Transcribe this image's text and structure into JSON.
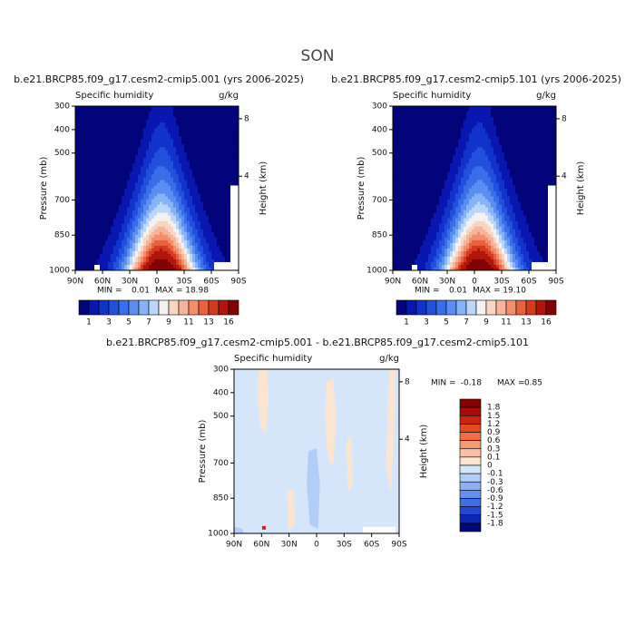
{
  "title": "SON",
  "panels": [
    {
      "title": "b.e21.BRCP85.f09_g17.cesm2-cmip5.001 (yrs 2006-2025)",
      "variable": "Specific humidity",
      "units": "g/kg",
      "ylabel": "Pressure (mb)",
      "y2label": "Height (km)",
      "xlim": [
        90,
        -90
      ],
      "xticks": [
        {
          "value": 90,
          "label": "90N"
        },
        {
          "value": 60,
          "label": "60N"
        },
        {
          "value": 30,
          "label": "30N"
        },
        0,
        {
          "value": -30,
          "label": "30S"
        },
        {
          "value": -60,
          "label": "60S"
        },
        {
          "value": -90,
          "label": "90S"
        }
      ],
      "ylim": [
        300,
        1000
      ],
      "yticks": [
        300,
        400,
        500,
        700,
        850,
        1000
      ],
      "y2ticks": [
        8,
        4
      ],
      "min_label": "MIN =",
      "min": "0.01",
      "max_label": "MAX =",
      "max": "18.98",
      "colorbar": {
        "orientation": "horizontal",
        "labels": [
          1,
          3,
          5,
          7,
          9,
          11,
          13,
          16
        ],
        "colors": [
          "#03037a",
          "#0a16b0",
          "#1232cc",
          "#2250dc",
          "#3a6ee8",
          "#5a8ef0",
          "#86b2f6",
          "#bcd6fa",
          "#f4f2f0",
          "#f9d6c4",
          "#f6b59a",
          "#f28e6c",
          "#e8623f",
          "#d33a20",
          "#b0160c",
          "#820303"
        ]
      }
    },
    {
      "title": "b.e21.BRCP85.f09_g17.cesm2-cmip5.101 (yrs 2006-2025)",
      "variable": "Specific humidity",
      "units": "g/kg",
      "ylabel": "Pressure (mb)",
      "y2label": "Height (km)",
      "xlim": [
        90,
        -90
      ],
      "xticks": [
        {
          "value": 90,
          "label": "90N"
        },
        {
          "value": 60,
          "label": "60N"
        },
        {
          "value": 30,
          "label": "30N"
        },
        0,
        {
          "value": -30,
          "label": "30S"
        },
        {
          "value": -60,
          "label": "60S"
        },
        {
          "value": -90,
          "label": "90S"
        }
      ],
      "ylim": [
        300,
        1000
      ],
      "yticks": [
        300,
        400,
        500,
        700,
        850,
        1000
      ],
      "y2ticks": [
        8,
        4
      ],
      "min_label": "MIN =",
      "min": "0.01",
      "max_label": "MAX =",
      "max": "19.10",
      "colorbar": {
        "orientation": "horizontal",
        "labels": [
          1,
          3,
          5,
          7,
          9,
          11,
          13,
          16
        ],
        "colors": [
          "#03037a",
          "#0a16b0",
          "#1232cc",
          "#2250dc",
          "#3a6ee8",
          "#5a8ef0",
          "#86b2f6",
          "#bcd6fa",
          "#f4f2f0",
          "#f9d6c4",
          "#f6b59a",
          "#f28e6c",
          "#e8623f",
          "#d33a20",
          "#b0160c",
          "#820303"
        ]
      }
    },
    {
      "title": "b.e21.BRCP85.f09_g17.cesm2-cmip5.001 - b.e21.BRCP85.f09_g17.cesm2-cmip5.101",
      "variable": "Specific humidity",
      "units": "g/kg",
      "ylabel": "Pressure (mb)",
      "y2label": "Height (km)",
      "xlim": [
        90,
        -90
      ],
      "xticks": [
        {
          "value": 90,
          "label": "90N"
        },
        {
          "value": 60,
          "label": "60N"
        },
        {
          "value": 30,
          "label": "30N"
        },
        0,
        {
          "value": -30,
          "label": "30S"
        },
        {
          "value": -60,
          "label": "60S"
        },
        {
          "value": -90,
          "label": "90S"
        }
      ],
      "ylim": [
        300,
        1000
      ],
      "yticks": [
        300,
        400,
        500,
        700,
        850,
        1000
      ],
      "y2ticks": [
        8,
        4
      ],
      "min_label": "MIN =",
      "min": "-0.18",
      "max_label": "MAX =",
      "max": "0.85",
      "colorbar": {
        "orientation": "vertical",
        "labels": [
          1.8,
          1.5,
          1.2,
          0.9,
          0.6,
          0.3,
          0.1,
          0,
          -0.1,
          -0.3,
          -0.6,
          -0.9,
          -1.2,
          -1.5,
          -1.8
        ],
        "colors": [
          "#820303",
          "#a80c08",
          "#c82410",
          "#e24a22",
          "#f07046",
          "#f59a76",
          "#f8c0a4",
          "#fbe4d0",
          "#d6e6fa",
          "#b2cdf6",
          "#8cb0f2",
          "#6690ec",
          "#406ee2",
          "#2248d2",
          "#0e26b0",
          "#03087a"
        ]
      }
    }
  ]
}
